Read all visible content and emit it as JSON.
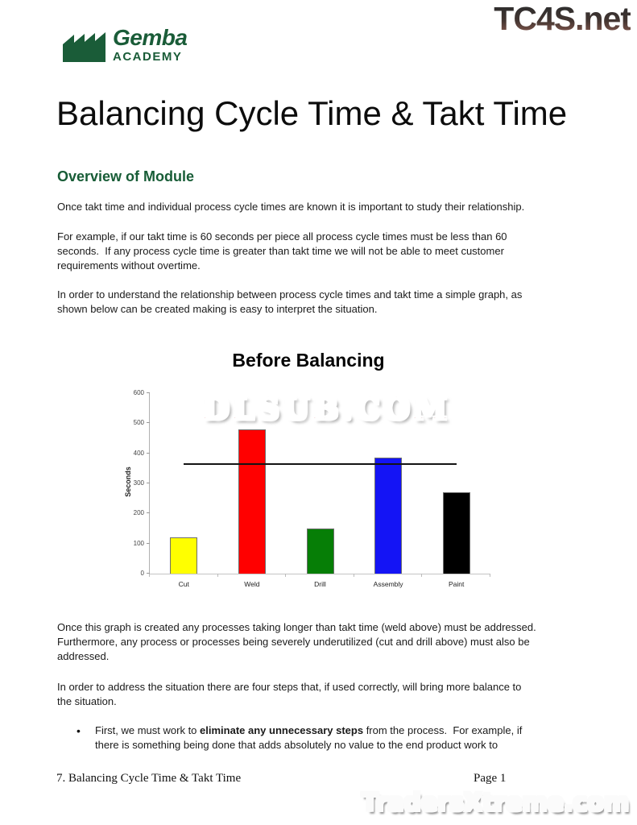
{
  "page": {
    "logo": {
      "line1": "Gemba",
      "line2": "ACADEMY"
    },
    "top_watermark": "TC4S.net",
    "title": "Balancing Cycle Time & Takt Time",
    "section_heading": "Overview of Module",
    "paragraphs": {
      "p1": "Once takt time and individual process cycle times are known it is important to study their relationship.",
      "p2": "For example, if our takt time is 60 seconds per piece all process cycle times must be less than 60\nseconds.  If any process cycle time is greater than takt time we will not be able to meet customer\nrequirements without overtime.",
      "p3": "In order to understand the relationship between process cycle times and takt time a simple graph, as\nshown below can be created making is easy to interpret the situation.",
      "p4": "Once this graph is created any processes taking longer than takt time (weld above) must be addressed.\nFurthermore, any process or processes being severely underutilized (cut and drill above) must also be\naddressed.",
      "p5": "In order to address the situation there are four steps that, if used correctly, will bring more balance to\nthe situation."
    },
    "bullet": {
      "marker": "•",
      "pre": "First, we must work to ",
      "bold": "eliminate any unnecessary steps",
      "post": " from the process.  For example, if\nthere is something being done that adds absolutely no value to the end product work to"
    },
    "chart_watermark": "DLSUB.COM",
    "bottom_watermark": "TradersXtreme.com",
    "footer": {
      "left": "7. Balancing Cycle Time & Takt Time",
      "page": "Page 1"
    },
    "colors": {
      "logo_green": "#1a5c38",
      "heading_green": "#175c36",
      "watermark_red": "#c00d1e",
      "traders_pink": "#b84c57"
    }
  },
  "chart_data": {
    "type": "bar",
    "title": "Before Balancing",
    "xlabel": "",
    "ylabel": "Seconds",
    "categories": [
      "Cut",
      "Weld",
      "Drill",
      "Assembly",
      "Paint"
    ],
    "values": [
      120,
      480,
      150,
      385,
      270
    ],
    "colors": [
      "#ffff00",
      "#ff0000",
      "#067e06",
      "#1414f5",
      "#000000"
    ],
    "ylim": [
      0,
      600
    ],
    "yticks": [
      0,
      100,
      200,
      300,
      400,
      500,
      600
    ],
    "takt_line": 365,
    "grid": false,
    "legend": false
  }
}
